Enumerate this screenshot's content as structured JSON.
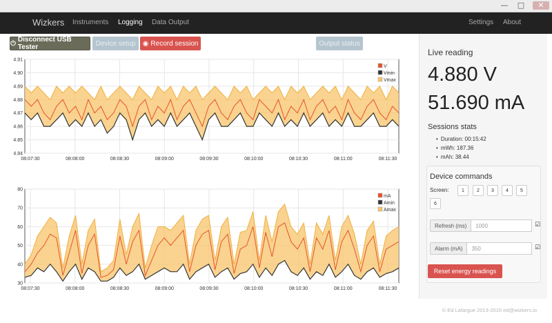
{
  "window": {
    "controls": [
      "—",
      "□",
      "✕"
    ]
  },
  "navbar": {
    "brand": "Wizkers",
    "items": [
      {
        "label": "Instruments",
        "active": false
      },
      {
        "label": "Logging",
        "active": true
      },
      {
        "label": "Data Output",
        "active": false
      }
    ],
    "right_items": [
      {
        "label": "Settings"
      },
      {
        "label": "About"
      }
    ]
  },
  "toolbar": {
    "disconnect_label": "Disconnect USB Tester",
    "disconnect_icon": "power-icon",
    "device_setup_label": "Device setup",
    "record_label": "Record session",
    "record_icon": "record-icon",
    "output_status_label": "Output status"
  },
  "live": {
    "title": "Live reading",
    "voltage": "4.880 V",
    "current": "51.690 mA"
  },
  "stats": {
    "title": "Sessions stats",
    "items": [
      "Duration: 00:15:42",
      "mWh: 187.36",
      "mAh: 38.44"
    ]
  },
  "commands": {
    "title": "Device commands",
    "screen_label": "Screen:",
    "screens": [
      "1",
      "2",
      "3",
      "4",
      "5",
      "6"
    ],
    "refresh_label": "Refresh (ms)",
    "refresh_placeholder": "1000",
    "alarm_label": "Alarm (mA)",
    "alarm_placeholder": "350",
    "reset_label": "Reset energy readings"
  },
  "footer": {
    "text": "© Ed Lafargue 2013-2015 ed@wizkers.io"
  },
  "colors": {
    "value": "#e8522a",
    "min": "#333333",
    "max_fill": "#f7c46a",
    "max_line": "#f0b040"
  },
  "chart_data": [
    {
      "type": "area",
      "x_ticks": [
        "08:07:30",
        "08:08:00",
        "08:08:30",
        "08:09:00",
        "08:09:30",
        "08:10:00",
        "08:10:30",
        "08:11:00",
        "08:11:30"
      ],
      "y_ticks": [
        4.84,
        4.85,
        4.86,
        4.87,
        4.88,
        4.89,
        4.9,
        4.91
      ],
      "ylim": [
        4.84,
        4.91
      ],
      "legend": [
        "V",
        "Vmin",
        "Vmax"
      ],
      "legend_position": "top-right",
      "grid": true,
      "series": [
        {
          "name": "Vmax",
          "values": [
            4.89,
            4.885,
            4.89,
            4.885,
            4.88,
            4.89,
            4.885,
            4.89,
            4.885,
            4.89,
            4.885,
            4.88,
            4.89,
            4.88,
            4.885,
            4.89,
            4.885,
            4.88,
            4.89,
            4.885,
            4.88,
            4.89,
            4.885,
            4.89,
            4.88,
            4.89,
            4.885,
            4.89,
            4.88,
            4.885,
            4.89,
            4.885,
            4.88,
            4.89,
            4.885,
            4.89,
            4.88,
            4.885,
            4.89,
            4.885,
            4.89,
            4.88,
            4.89,
            4.885,
            4.89,
            4.88,
            4.885,
            4.89,
            4.885,
            4.89,
            4.88,
            4.89,
            4.885,
            4.88,
            4.89,
            4.885,
            4.89,
            4.88,
            4.89,
            4.885
          ]
        },
        {
          "name": "V",
          "values": [
            4.88,
            4.875,
            4.88,
            4.87,
            4.865,
            4.875,
            4.88,
            4.87,
            4.875,
            4.865,
            4.88,
            4.87,
            4.875,
            4.865,
            4.87,
            4.88,
            4.875,
            4.86,
            4.875,
            4.88,
            4.865,
            4.875,
            4.87,
            4.88,
            4.865,
            4.875,
            4.88,
            4.87,
            4.86,
            4.875,
            4.88,
            4.87,
            4.865,
            4.875,
            4.88,
            4.87,
            4.865,
            4.88,
            4.875,
            4.87,
            4.88,
            4.865,
            4.875,
            4.87,
            4.88,
            4.865,
            4.875,
            4.88,
            4.87,
            4.875,
            4.865,
            4.88,
            4.87,
            4.865,
            4.875,
            4.88,
            4.87,
            4.865,
            4.875,
            4.87
          ]
        },
        {
          "name": "Vmin",
          "values": [
            4.87,
            4.865,
            4.87,
            4.86,
            4.86,
            4.865,
            4.87,
            4.86,
            4.865,
            4.86,
            4.87,
            4.86,
            4.865,
            4.855,
            4.86,
            4.87,
            4.865,
            4.85,
            4.865,
            4.87,
            4.86,
            4.865,
            4.86,
            4.87,
            4.86,
            4.865,
            4.87,
            4.86,
            4.85,
            4.865,
            4.87,
            4.86,
            4.86,
            4.865,
            4.87,
            4.86,
            4.86,
            4.87,
            4.865,
            4.86,
            4.87,
            4.86,
            4.865,
            4.86,
            4.87,
            4.86,
            4.865,
            4.87,
            4.86,
            4.865,
            4.86,
            4.87,
            4.86,
            4.86,
            4.865,
            4.87,
            4.86,
            4.86,
            4.865,
            4.86
          ]
        }
      ]
    },
    {
      "type": "area",
      "x_ticks": [
        "08:07:30",
        "08:08:00",
        "08:08:30",
        "08:09:00",
        "08:09:30",
        "08:10:00",
        "08:10:30",
        "08:11:00",
        "08:11:30"
      ],
      "y_ticks": [
        30,
        40,
        50,
        60,
        70,
        80
      ],
      "ylim": [
        30,
        80
      ],
      "legend": [
        "mA",
        "Amin",
        "Amax"
      ],
      "legend_position": "top-right",
      "grid": true,
      "series": [
        {
          "name": "Amax",
          "values": [
            40,
            45,
            55,
            60,
            65,
            62,
            38,
            55,
            66,
            40,
            58,
            64,
            36,
            38,
            42,
            64,
            45,
            60,
            67,
            38,
            50,
            60,
            60,
            58,
            62,
            66,
            40,
            58,
            64,
            66,
            42,
            60,
            65,
            40,
            57,
            58,
            68,
            42,
            66,
            52,
            68,
            72,
            60,
            56,
            62,
            40,
            62,
            56,
            66,
            42,
            60,
            66,
            56,
            40,
            58,
            63,
            40,
            55,
            58,
            60
          ]
        },
        {
          "name": "mA",
          "values": [
            36,
            40,
            46,
            50,
            56,
            54,
            34,
            46,
            58,
            35,
            50,
            56,
            33,
            34,
            37,
            55,
            40,
            52,
            58,
            34,
            42,
            50,
            54,
            50,
            54,
            58,
            36,
            50,
            56,
            58,
            37,
            52,
            56,
            35,
            48,
            50,
            60,
            38,
            57,
            44,
            60,
            62,
            52,
            48,
            54,
            36,
            54,
            48,
            58,
            37,
            52,
            58,
            48,
            36,
            50,
            55,
            36,
            48,
            50,
            52
          ]
        },
        {
          "name": "Amin",
          "values": [
            33,
            34,
            38,
            36,
            40,
            36,
            31,
            36,
            40,
            32,
            38,
            36,
            31,
            31,
            33,
            38,
            34,
            36,
            40,
            32,
            34,
            36,
            38,
            36,
            36,
            40,
            32,
            36,
            38,
            40,
            33,
            36,
            38,
            32,
            35,
            36,
            40,
            33,
            38,
            34,
            40,
            42,
            36,
            34,
            38,
            32,
            36,
            34,
            40,
            33,
            36,
            40,
            34,
            32,
            36,
            38,
            33,
            35,
            36,
            38
          ]
        }
      ]
    }
  ]
}
